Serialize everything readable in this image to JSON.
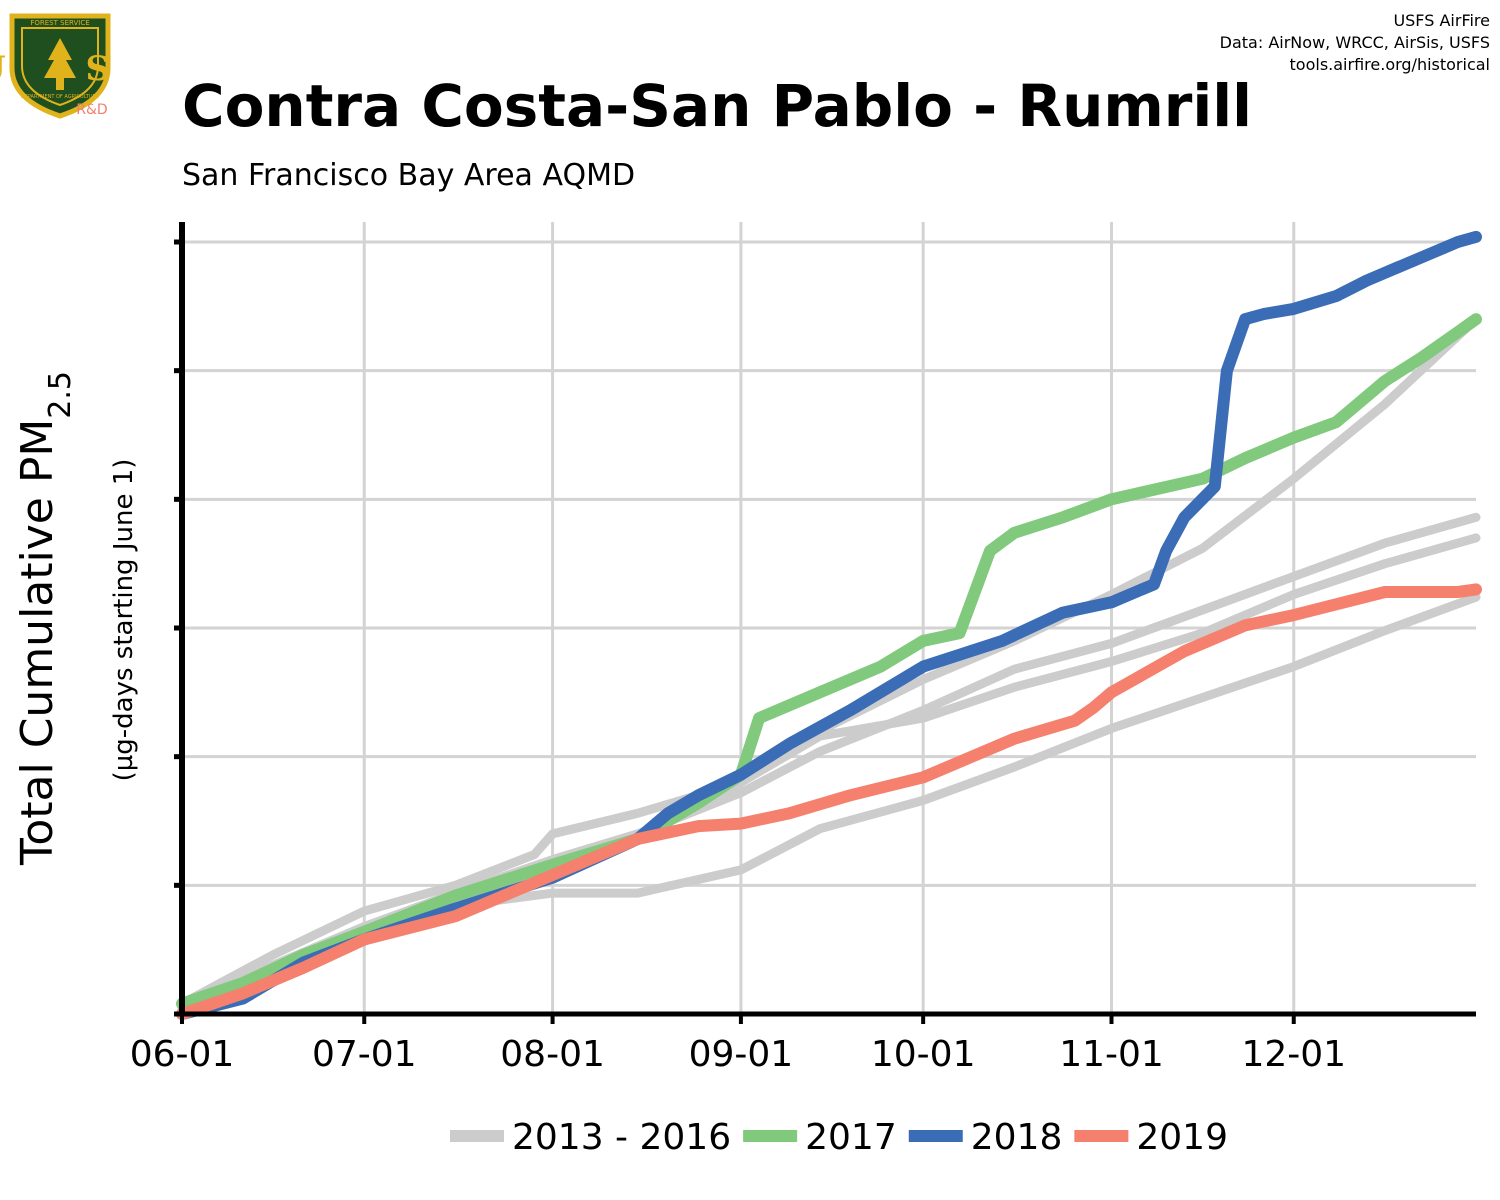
{
  "header": {
    "title": "Contra Costa-San Pablo - Rumrill",
    "subtitle": "San Francisco Bay Area AQMD",
    "credit_lines": [
      "USFS AirFire",
      "Data: AirNow, WRCC, AirSis, USFS",
      "tools.airfire.org/historical"
    ]
  },
  "logo": {
    "icon": "usfs-shield-logo",
    "top_text": "FOREST SERVICE",
    "letters": "U S",
    "bottom_text": "DEPARTMENT OF AGRICULTURE",
    "tag": "R&D",
    "colors": {
      "shield": "#1f4e1f",
      "gold": "#e0b21b",
      "tag": "#f08070"
    }
  },
  "y_axis": {
    "label_main": "Total Cumulative PM",
    "label_subscript": "2.5",
    "label_sub": "(µg-days starting June 1)"
  },
  "chart_data": {
    "type": "line",
    "title": "Contra Costa-San Pablo - Rumrill",
    "subtitle": "San Francisco Bay Area AQMD",
    "xlabel": "",
    "ylabel": "Total Cumulative PM2.5 (µg-days starting June 1)",
    "x_unit": "days since June 1",
    "x_range": [
      0,
      213
    ],
    "x_ticks": [
      {
        "day": 0,
        "label": "06-01"
      },
      {
        "day": 30,
        "label": "07-01"
      },
      {
        "day": 61,
        "label": "08-01"
      },
      {
        "day": 92,
        "label": "09-01"
      },
      {
        "day": 122,
        "label": "10-01"
      },
      {
        "day": 153,
        "label": "11-01"
      },
      {
        "day": 183,
        "label": "12-01"
      }
    ],
    "y_range": [
      0,
      3000
    ],
    "y_ticks": [
      0,
      500,
      1000,
      1500,
      2000,
      2500,
      3000
    ],
    "y_tick_labels_shown": false,
    "grid": true,
    "legend_position": "bottom",
    "series": [
      {
        "name": "2013 - 2016",
        "group": "2013 - 2016",
        "color": "#cccccc",
        "width": 9,
        "x": [
          0,
          15,
          30,
          45,
          58,
          61,
          75,
          92,
          105,
          122,
          137,
          153,
          168,
          183,
          198,
          213
        ],
        "y": [
          40,
          230,
          400,
          500,
          620,
          700,
          780,
          900,
          1100,
          1300,
          1450,
          1630,
          1810,
          2080,
          2370,
          2700
        ]
      },
      {
        "name": "2013 - 2016",
        "group": "2013 - 2016",
        "color": "#cccccc",
        "width": 9,
        "x": [
          0,
          15,
          30,
          45,
          61,
          75,
          92,
          105,
          122,
          137,
          153,
          168,
          183,
          198,
          213
        ],
        "y": [
          25,
          180,
          330,
          450,
          560,
          680,
          900,
          1080,
          1150,
          1270,
          1370,
          1480,
          1630,
          1750,
          1850
        ]
      },
      {
        "name": "2013 - 2016",
        "group": "2013 - 2016",
        "color": "#cccccc",
        "width": 9,
        "x": [
          0,
          15,
          30,
          45,
          61,
          75,
          92,
          105,
          122,
          137,
          153,
          168,
          183,
          198,
          213
        ],
        "y": [
          30,
          190,
          340,
          470,
          600,
          700,
          860,
          1020,
          1180,
          1340,
          1440,
          1570,
          1700,
          1830,
          1930
        ]
      },
      {
        "name": "2013 - 2016",
        "group": "2013 - 2016",
        "color": "#cccccc",
        "width": 9,
        "x": [
          0,
          15,
          30,
          45,
          61,
          75,
          92,
          105,
          122,
          137,
          153,
          168,
          183,
          198,
          213
        ],
        "y": [
          20,
          170,
          290,
          420,
          470,
          470,
          560,
          720,
          830,
          960,
          1110,
          1230,
          1350,
          1490,
          1620
        ]
      },
      {
        "name": "2017",
        "group": "2017",
        "color": "#80c97d",
        "width": 12,
        "x": [
          0,
          10,
          20,
          30,
          45,
          61,
          75,
          85,
          92,
          95,
          105,
          115,
          122,
          128,
          133,
          137,
          145,
          153,
          168,
          175,
          183,
          190,
          198,
          204,
          210,
          213
        ],
        "y": [
          40,
          120,
          230,
          320,
          460,
          580,
          680,
          820,
          930,
          1150,
          1250,
          1350,
          1450,
          1480,
          1800,
          1870,
          1930,
          2000,
          2080,
          2160,
          2240,
          2300,
          2460,
          2550,
          2650,
          2700
        ]
      },
      {
        "name": "2018",
        "group": "2018",
        "color": "#3a6db5",
        "width": 12,
        "x": [
          0,
          10,
          20,
          30,
          45,
          61,
          75,
          80,
          85,
          92,
          100,
          110,
          122,
          135,
          145,
          153,
          160,
          162,
          165,
          170,
          172,
          175,
          178,
          183,
          190,
          195,
          200,
          205,
          210,
          213
        ],
        "y": [
          0,
          60,
          200,
          290,
          410,
          530,
          680,
          780,
          850,
          930,
          1050,
          1180,
          1350,
          1450,
          1560,
          1600,
          1670,
          1800,
          1930,
          2050,
          2500,
          2700,
          2720,
          2740,
          2790,
          2850,
          2900,
          2950,
          3000,
          3020
        ]
      },
      {
        "name": "2019",
        "group": "2019",
        "color": "#f5806e",
        "width": 12,
        "x": [
          0,
          10,
          20,
          30,
          45,
          61,
          75,
          85,
          92,
          100,
          110,
          122,
          137,
          147,
          150,
          153,
          165,
          175,
          183,
          198,
          210,
          213
        ],
        "y": [
          0,
          80,
          180,
          290,
          380,
          540,
          680,
          730,
          740,
          780,
          850,
          920,
          1070,
          1140,
          1190,
          1250,
          1410,
          1510,
          1550,
          1640,
          1640,
          1650
        ]
      }
    ]
  },
  "legend": {
    "items": [
      {
        "label": "2013 - 2016",
        "color": "#cccccc"
      },
      {
        "label": "2017",
        "color": "#80c97d"
      },
      {
        "label": "2018",
        "color": "#3a6db5"
      },
      {
        "label": "2019",
        "color": "#f5806e"
      }
    ]
  }
}
